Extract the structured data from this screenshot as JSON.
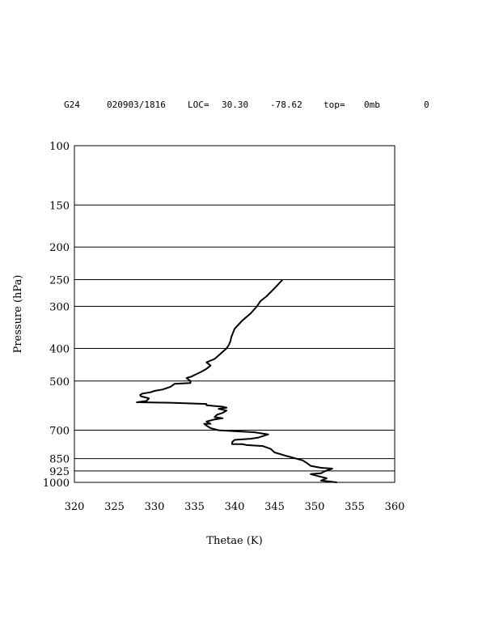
{
  "header": {
    "station": "G24",
    "datetime": "020903/1816",
    "loc_label": "LOC=",
    "lat": "30.30",
    "lon": "-78.62",
    "top_label": "top=",
    "top_value": "0mb",
    "flag": "0"
  },
  "chart_data": {
    "type": "line",
    "xlabel": "Thetae (K)",
    "ylabel": "Pressure (hPa)",
    "xlim": [
      320,
      360
    ],
    "ylim": [
      1000,
      100
    ],
    "y_scale": "log",
    "grid": "horizontal",
    "x_ticks": [
      320,
      325,
      330,
      335,
      340,
      345,
      350,
      355,
      360
    ],
    "y_ticks": [
      100,
      150,
      200,
      250,
      300,
      400,
      500,
      700,
      850,
      925,
      1000
    ],
    "series": [
      {
        "points": [
          [
            352.8,
            1000
          ],
          [
            350.8,
            988
          ],
          [
            351.5,
            972
          ],
          [
            350.2,
            955
          ],
          [
            349.5,
            945
          ],
          [
            350.8,
            940
          ],
          [
            351.2,
            928
          ],
          [
            352.2,
            910
          ],
          [
            350.8,
            905
          ],
          [
            349.5,
            893
          ],
          [
            349.0,
            875
          ],
          [
            348.5,
            860
          ],
          [
            346.5,
            835
          ],
          [
            345.0,
            815
          ],
          [
            344.5,
            795
          ],
          [
            343.5,
            780
          ],
          [
            341.5,
            775
          ],
          [
            341.0,
            770
          ],
          [
            339.7,
            770
          ],
          [
            339.7,
            760
          ],
          [
            340.0,
            748
          ],
          [
            342.0,
            742
          ],
          [
            343.0,
            736
          ],
          [
            344.2,
            720
          ],
          [
            342.5,
            710
          ],
          [
            338.0,
            700
          ],
          [
            337.0,
            690
          ],
          [
            336.5,
            678
          ],
          [
            336.2,
            670
          ],
          [
            337.0,
            670
          ],
          [
            336.5,
            660
          ],
          [
            337.5,
            650
          ],
          [
            338.5,
            645
          ],
          [
            337.5,
            640
          ],
          [
            337.8,
            630
          ],
          [
            338.5,
            622
          ],
          [
            339.0,
            612
          ],
          [
            338.0,
            605
          ],
          [
            339.0,
            600
          ],
          [
            338.5,
            596
          ],
          [
            336.5,
            590
          ],
          [
            336.5,
            585
          ],
          [
            332.0,
            580
          ],
          [
            327.8,
            578
          ],
          [
            329.0,
            573
          ],
          [
            329.3,
            563
          ],
          [
            328.3,
            555
          ],
          [
            328.2,
            550
          ],
          [
            328.5,
            545
          ],
          [
            329.5,
            540
          ],
          [
            330.0,
            535
          ],
          [
            331.0,
            530
          ],
          [
            332.0,
            520
          ],
          [
            332.5,
            510
          ],
          [
            334.5,
            507
          ],
          [
            334.5,
            500
          ],
          [
            334.0,
            490
          ],
          [
            334.6,
            485
          ],
          [
            335.0,
            480
          ],
          [
            335.8,
            470
          ],
          [
            336.5,
            460
          ],
          [
            337.0,
            450
          ],
          [
            336.5,
            440
          ],
          [
            337.5,
            430
          ],
          [
            338.0,
            420
          ],
          [
            338.5,
            410
          ],
          [
            339.0,
            400
          ],
          [
            339.3,
            390
          ],
          [
            339.5,
            380
          ],
          [
            339.6,
            370
          ],
          [
            339.8,
            360
          ],
          [
            340.0,
            350
          ],
          [
            341.0,
            330
          ],
          [
            342.0,
            315
          ],
          [
            342.8,
            300
          ],
          [
            343.2,
            290
          ],
          [
            344.0,
            280
          ],
          [
            345.0,
            265
          ],
          [
            346.0,
            250
          ]
        ]
      }
    ]
  }
}
